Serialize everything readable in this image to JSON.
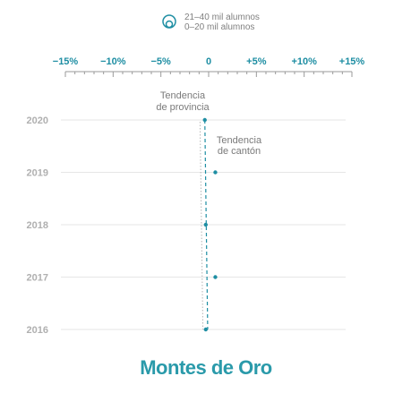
{
  "legend": {
    "items": [
      {
        "label": "21–40 mil alumnos"
      },
      {
        "label": "0–20 mil alumnos"
      }
    ]
  },
  "annotations": {
    "province": [
      "Tendencia",
      "de provincia"
    ],
    "canton": [
      "Tendencia",
      "de cantón"
    ]
  },
  "title": "Montes de Oro",
  "colors": {
    "accent": "#1e8ea3",
    "title": "#2a9aaa",
    "year_label": "#b0b0b0",
    "grid": "#e6e6e6",
    "province_trend": "#b5b5b5"
  },
  "chart_data": {
    "type": "scatter",
    "title": "Montes de Oro",
    "xlim": [
      -15,
      15
    ],
    "x_ticks": [
      -15,
      -10,
      -5,
      0,
      5,
      10,
      15
    ],
    "x_tick_labels": [
      "−15%",
      "−10%",
      "−5%",
      "0",
      "+5%",
      "+10%",
      "+15%"
    ],
    "categories": [
      "2020",
      "2019",
      "2018",
      "2017",
      "2016"
    ],
    "values": [
      -0.4,
      0.7,
      -0.3,
      0.7,
      -0.3
    ],
    "province_trend": {
      "start": -0.9,
      "end": -0.6
    },
    "canton_trend": {
      "start": -0.4,
      "end": -0.1
    },
    "grid": true
  }
}
